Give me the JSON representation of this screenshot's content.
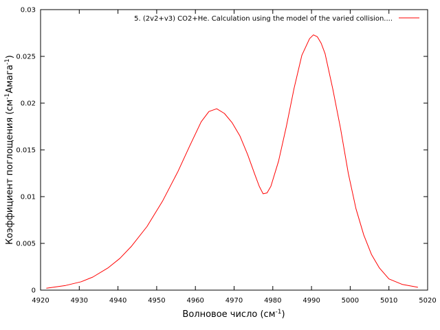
{
  "chart_data": {
    "type": "line",
    "title": "",
    "xlabel": {
      "main": "Волновое число (см",
      "sup": "-1",
      "end": ")"
    },
    "ylabel": {
      "main": "Коэффициент поглощения (см",
      "sup1": "-1",
      "mid": "Амага",
      "sup2": "-1",
      "end": ")"
    },
    "xlim": [
      4920,
      5020
    ],
    "ylim": [
      0,
      0.03
    ],
    "x_ticks": [
      4920,
      4930,
      4940,
      4950,
      4960,
      4970,
      4980,
      4990,
      5000,
      5010,
      5020
    ],
    "x_tick_labels": [
      "4920",
      "4930",
      "4940",
      "4950",
      "4960",
      "4970",
      "4980",
      "4990",
      "5000",
      "5010",
      "5020"
    ],
    "y_ticks": [
      0,
      0.005,
      0.01,
      0.015,
      0.02,
      0.025,
      0.03
    ],
    "y_tick_labels": [
      "0",
      "0.005",
      "0.01",
      "0.015",
      "0.02",
      "0.025",
      "0.03"
    ],
    "grid": false,
    "legend_position": "top-right",
    "series": [
      {
        "name": "5. (2v2+v3) CO2+He. Calculation using the model of the varied collision....",
        "color": "#ff0000",
        "x": [
          4921.5,
          4926.5,
          4930.5,
          4933.5,
          4937.5,
          4940.5,
          4943.5,
          4947.5,
          4951.5,
          4955.5,
          4958.5,
          4961.5,
          4963.5,
          4965.5,
          4967.5,
          4969.5,
          4971.5,
          4973.5,
          4975.5,
          4976.5,
          4977.5,
          4978.5,
          4979.5,
          4981.5,
          4983.5,
          4985.5,
          4987.5,
          4989.5,
          4990.5,
          4991.5,
          4992.5,
          4993.5,
          4995.5,
          4997.5,
          4999.5,
          5001.5,
          5003.5,
          5005.5,
          5007.5,
          5010.0,
          5013.5,
          5017.5
        ],
        "y": [
          0.0002,
          0.0005,
          0.0009,
          0.0014,
          0.0024,
          0.0034,
          0.0047,
          0.0068,
          0.0095,
          0.0127,
          0.0154,
          0.018,
          0.0191,
          0.0194,
          0.0189,
          0.0179,
          0.0165,
          0.0145,
          0.0122,
          0.0111,
          0.0103,
          0.0104,
          0.0111,
          0.0138,
          0.0175,
          0.0216,
          0.0251,
          0.0269,
          0.0273,
          0.0271,
          0.0264,
          0.0253,
          0.0215,
          0.0173,
          0.0125,
          0.0087,
          0.0059,
          0.0038,
          0.0024,
          0.0012,
          0.0006,
          0.0003
        ]
      }
    ]
  }
}
